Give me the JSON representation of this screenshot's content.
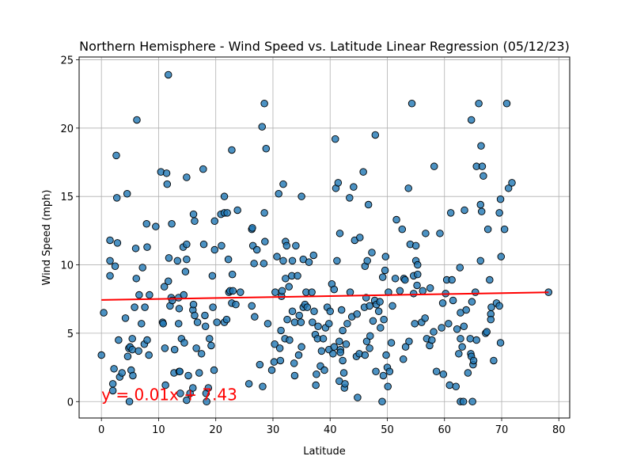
{
  "chart_data": {
    "type": "scatter",
    "title": "Northern Hemisphere - Wind Speed vs. Latitude Linear Regression (05/12/23)",
    "xlabel": "Latitude",
    "ylabel": "Wind Speed (mph)",
    "xlim": [
      -3.9,
      81.9
    ],
    "ylim": [
      -1.2,
      25.2
    ],
    "xticks": [
      0,
      10,
      20,
      30,
      40,
      50,
      60,
      70,
      80
    ],
    "yticks": [
      0,
      5,
      10,
      15,
      20,
      25
    ],
    "grid": true,
    "marker_color": "#1f77b4",
    "line_color": "#ff0000",
    "regression": {
      "slope": 0.0072,
      "intercept": 7.43,
      "x_range": [
        0,
        78.2
      ],
      "equation": "y = 0.01x + 7.43",
      "equation_x": 0,
      "equation_y": 0.1
    },
    "points": [
      [
        0,
        3.4
      ],
      [
        0.4,
        6.5
      ],
      [
        1.5,
        11.8
      ],
      [
        1.5,
        10.3
      ],
      [
        1.5,
        9.2
      ],
      [
        2,
        1.3
      ],
      [
        2,
        0.8
      ],
      [
        2.2,
        2.4
      ],
      [
        2.4,
        9.9
      ],
      [
        2.6,
        18
      ],
      [
        2.7,
        14.9
      ],
      [
        2.8,
        11.6
      ],
      [
        3,
        4.5
      ],
      [
        3.2,
        1.8
      ],
      [
        3.6,
        2.1
      ],
      [
        4.2,
        6.1
      ],
      [
        4.5,
        15.2
      ],
      [
        4.6,
        3.3
      ],
      [
        4.8,
        3.9
      ],
      [
        4.9,
        0
      ],
      [
        5,
        4
      ],
      [
        5.2,
        2.3
      ],
      [
        5.4,
        3.8
      ],
      [
        5.4,
        4.6
      ],
      [
        5.5,
        1.9
      ],
      [
        5.8,
        6.9
      ],
      [
        6,
        11.2
      ],
      [
        6.1,
        9
      ],
      [
        6.2,
        20.6
      ],
      [
        6.5,
        3.7
      ],
      [
        6.6,
        7.8
      ],
      [
        7,
        5.7
      ],
      [
        7.2,
        9.8
      ],
      [
        7.5,
        4.2
      ],
      [
        7.6,
        6.9
      ],
      [
        7.9,
        13
      ],
      [
        8,
        11.3
      ],
      [
        8,
        4.5
      ],
      [
        8.3,
        3.4
      ],
      [
        8.4,
        7.8
      ],
      [
        9.5,
        12.8
      ],
      [
        10.4,
        16.8
      ],
      [
        10.7,
        5.8
      ],
      [
        10.8,
        5.7
      ],
      [
        11,
        8.4
      ],
      [
        11.1,
        3.9
      ],
      [
        11.2,
        1.2
      ],
      [
        11.4,
        16.7
      ],
      [
        11.5,
        15.9
      ],
      [
        11.7,
        23.9
      ],
      [
        11.7,
        8.8
      ],
      [
        11.8,
        10.5
      ],
      [
        12,
        7
      ],
      [
        12.2,
        7.6
      ],
      [
        12.3,
        13
      ],
      [
        12.4,
        7.4
      ],
      [
        12.7,
        2.1
      ],
      [
        12.8,
        3.8
      ],
      [
        13.3,
        10.3
      ],
      [
        13.5,
        7.6
      ],
      [
        13.5,
        5.7
      ],
      [
        13.6,
        6.8
      ],
      [
        13.6,
        2.2
      ],
      [
        13.7,
        2.2
      ],
      [
        13.8,
        0.6
      ],
      [
        14,
        4.6
      ],
      [
        14.3,
        11.3
      ],
      [
        14.4,
        7.8
      ],
      [
        14.5,
        4.3
      ],
      [
        14.7,
        9.5
      ],
      [
        14.9,
        11.5
      ],
      [
        14.9,
        10.4
      ],
      [
        14.9,
        0.1
      ],
      [
        14.9,
        16.4
      ],
      [
        15.2,
        1.9
      ],
      [
        15.5,
        0.6
      ],
      [
        16,
        6.7
      ],
      [
        16.1,
        7.1
      ],
      [
        16,
        1
      ],
      [
        16.1,
        13.7
      ],
      [
        16.3,
        13.2
      ],
      [
        16.3,
        6.3
      ],
      [
        16.6,
        3.9
      ],
      [
        16.8,
        5.8
      ],
      [
        17.1,
        2.1
      ],
      [
        17.5,
        3.5
      ],
      [
        17.8,
        17
      ],
      [
        17.9,
        11.5
      ],
      [
        18.1,
        6.3
      ],
      [
        18.2,
        5.5
      ],
      [
        18.3,
        0.6
      ],
      [
        18.4,
        0
      ],
      [
        18.7,
        1
      ],
      [
        18.9,
        4.6
      ],
      [
        19.2,
        4.1
      ],
      [
        19.4,
        9.2
      ],
      [
        19.5,
        6.9
      ],
      [
        19.8,
        13.2
      ],
      [
        19.7,
        2.3
      ],
      [
        19.8,
        11.1
      ],
      [
        20.2,
        5.8
      ],
      [
        20.9,
        13.7
      ],
      [
        21,
        11.4
      ],
      [
        21.5,
        15
      ],
      [
        21.5,
        5.8
      ],
      [
        21.5,
        13.8
      ],
      [
        21.9,
        6
      ],
      [
        22,
        13.8
      ],
      [
        22.2,
        10.4
      ],
      [
        22.3,
        8
      ],
      [
        22.5,
        8.1
      ],
      [
        22.8,
        7.2
      ],
      [
        22.8,
        18.4
      ],
      [
        22.9,
        9.3
      ],
      [
        23,
        8.1
      ],
      [
        23.5,
        7.1
      ],
      [
        23.8,
        14
      ],
      [
        24.3,
        8
      ],
      [
        25.8,
        1.3
      ],
      [
        26.3,
        12.6
      ],
      [
        26.3,
        7
      ],
      [
        26.4,
        12.7
      ],
      [
        26.5,
        11.4
      ],
      [
        26.7,
        10.1
      ],
      [
        26.8,
        6.2
      ],
      [
        27.2,
        11.1
      ],
      [
        27.7,
        2.7
      ],
      [
        28.1,
        20.1
      ],
      [
        28.2,
        1.1
      ],
      [
        28.4,
        10.1
      ],
      [
        28.5,
        21.8
      ],
      [
        28.5,
        13.8
      ],
      [
        28.6,
        11.7
      ],
      [
        28.8,
        18.5
      ],
      [
        29.1,
        5.7
      ],
      [
        29.8,
        2.3
      ],
      [
        30.2,
        2.9
      ],
      [
        30.3,
        4.2
      ],
      [
        30.4,
        8
      ],
      [
        30.7,
        10.6
      ],
      [
        31,
        15.2
      ],
      [
        31.2,
        3.9
      ],
      [
        31.3,
        3
      ],
      [
        31.4,
        5.2
      ],
      [
        31.5,
        7.7
      ],
      [
        31.6,
        8.1
      ],
      [
        31.8,
        10.3
      ],
      [
        31.8,
        15.9
      ],
      [
        32.1,
        4.6
      ],
      [
        32.2,
        11.7
      ],
      [
        32.2,
        9
      ],
      [
        32.4,
        11.4
      ],
      [
        32.5,
        6
      ],
      [
        32.8,
        8.4
      ],
      [
        32.9,
        4.5
      ],
      [
        33.3,
        9.2
      ],
      [
        33.4,
        6.6
      ],
      [
        33.4,
        10.3
      ],
      [
        33.7,
        2.8
      ],
      [
        33.8,
        1.9
      ],
      [
        33.8,
        5.8
      ],
      [
        34,
        11.4
      ],
      [
        34.3,
        9.2
      ],
      [
        34.5,
        3.4
      ],
      [
        34.6,
        6.3
      ],
      [
        34.9,
        5.8
      ],
      [
        35,
        15
      ],
      [
        35,
        4
      ],
      [
        35.3,
        10.4
      ],
      [
        35.3,
        6.9
      ],
      [
        35.6,
        7.1
      ],
      [
        35.8,
        8
      ],
      [
        36,
        6.9
      ],
      [
        36.3,
        10.2
      ],
      [
        36.8,
        8
      ],
      [
        36.9,
        5.8
      ],
      [
        37.1,
        10.7
      ],
      [
        37.2,
        6.6
      ],
      [
        37.4,
        4.9
      ],
      [
        37.5,
        1.2
      ],
      [
        37.6,
        2
      ],
      [
        37.8,
        4.6
      ],
      [
        37.9,
        5.5
      ],
      [
        38.3,
        2.6
      ],
      [
        38.5,
        3.7
      ],
      [
        38.8,
        4.6
      ],
      [
        39,
        2.3
      ],
      [
        39.2,
        5.4
      ],
      [
        39.5,
        6.9
      ],
      [
        39.8,
        5.7
      ],
      [
        39.8,
        3.8
      ],
      [
        40,
        6.6
      ],
      [
        40.3,
        8.6
      ],
      [
        40.5,
        3.5
      ],
      [
        40.7,
        4
      ],
      [
        40.7,
        8.2
      ],
      [
        40.9,
        19.2
      ],
      [
        41,
        15.6
      ],
      [
        41.2,
        10.3
      ],
      [
        41.4,
        16
      ],
      [
        41.6,
        4.4
      ],
      [
        41.6,
        1.5
      ],
      [
        41.7,
        12.3
      ],
      [
        41.8,
        3.8
      ],
      [
        41.8,
        3.6
      ],
      [
        42,
        6.7
      ],
      [
        42.2,
        5.2
      ],
      [
        42.2,
        3
      ],
      [
        42.4,
        2.1
      ],
      [
        42.5,
        1
      ],
      [
        42.6,
        1.3
      ],
      [
        42.8,
        4.2
      ],
      [
        43,
        5.7
      ],
      [
        43.4,
        14.9
      ],
      [
        43.5,
        8
      ],
      [
        43.8,
        6.2
      ],
      [
        44.1,
        15.7
      ],
      [
        44.3,
        11.8
      ],
      [
        44.6,
        3.3
      ],
      [
        44.7,
        6.4
      ],
      [
        44.8,
        0.3
      ],
      [
        45.1,
        3.5
      ],
      [
        45.2,
        12
      ],
      [
        45.8,
        16.8
      ],
      [
        46,
        6.9
      ],
      [
        46.1,
        3.4
      ],
      [
        46.1,
        9.9
      ],
      [
        46.3,
        7.6
      ],
      [
        46.4,
        4.4
      ],
      [
        46.5,
        10.3
      ],
      [
        46.7,
        14.4
      ],
      [
        46.9,
        7
      ],
      [
        46.9,
        3.9
      ],
      [
        47,
        4.8
      ],
      [
        47.3,
        10.9
      ],
      [
        47.5,
        5.9
      ],
      [
        47.8,
        7.4
      ],
      [
        47.9,
        19.5
      ],
      [
        48,
        2.2
      ],
      [
        48.1,
        7.1
      ],
      [
        48.5,
        6.6
      ],
      [
        48.7,
        7.3
      ],
      [
        48.8,
        5.4
      ],
      [
        49.1,
        0
      ],
      [
        49.2,
        9.1
      ],
      [
        49.3,
        1.9
      ],
      [
        49.4,
        6
      ],
      [
        49.6,
        9.6
      ],
      [
        49.7,
        10.6
      ],
      [
        49.8,
        3.4
      ],
      [
        50,
        2.5
      ],
      [
        50.1,
        1.1
      ],
      [
        50.2,
        8
      ],
      [
        50.4,
        2.2
      ],
      [
        50.7,
        4.3
      ],
      [
        50.9,
        7
      ],
      [
        51.4,
        9
      ],
      [
        51.6,
        13.3
      ],
      [
        52.2,
        8.1
      ],
      [
        52.6,
        12.6
      ],
      [
        52.8,
        3.1
      ],
      [
        52.9,
        9
      ],
      [
        53.1,
        8.9
      ],
      [
        53.2,
        4
      ],
      [
        53.7,
        15.6
      ],
      [
        53.8,
        4.4
      ],
      [
        54,
        11.5
      ],
      [
        54.3,
        21.8
      ],
      [
        54.6,
        9.2
      ],
      [
        54.6,
        7.9
      ],
      [
        54.8,
        5.7
      ],
      [
        55,
        10.3
      ],
      [
        55,
        11.4
      ],
      [
        55.2,
        8.5
      ],
      [
        55.3,
        9.3
      ],
      [
        55.3,
        10
      ],
      [
        56,
        5.8
      ],
      [
        56.2,
        8.1
      ],
      [
        56.6,
        6.1
      ],
      [
        56.7,
        12.3
      ],
      [
        56.9,
        4.6
      ],
      [
        57.4,
        4.1
      ],
      [
        57.5,
        8.3
      ],
      [
        57.8,
        4.5
      ],
      [
        58.1,
        5.1
      ],
      [
        58.2,
        17.2
      ],
      [
        58.6,
        2.2
      ],
      [
        59.2,
        12.3
      ],
      [
        59.5,
        5.4
      ],
      [
        59.7,
        7.2
      ],
      [
        59.8,
        2
      ],
      [
        60.2,
        7.9
      ],
      [
        60.4,
        8.9
      ],
      [
        60.7,
        5.7
      ],
      [
        60.9,
        1.2
      ],
      [
        61.1,
        13.8
      ],
      [
        61.3,
        8.9
      ],
      [
        61.5,
        7.4
      ],
      [
        62,
        1.1
      ],
      [
        62.2,
        5.3
      ],
      [
        62.5,
        3.5
      ],
      [
        62.7,
        9.8
      ],
      [
        62.8,
        4.6
      ],
      [
        62.8,
        6.5
      ],
      [
        62.8,
        0
      ],
      [
        63.1,
        4
      ],
      [
        63.3,
        0
      ],
      [
        63.4,
        5.5
      ],
      [
        63.5,
        14
      ],
      [
        63.8,
        6.7
      ],
      [
        64.1,
        2.1
      ],
      [
        64.5,
        4.6
      ],
      [
        64.6,
        3.5
      ],
      [
        64.7,
        20.6
      ],
      [
        64.7,
        3.3
      ],
      [
        64.8,
        7.3
      ],
      [
        64.9,
        0
      ],
      [
        65,
        2.7
      ],
      [
        65.1,
        3
      ],
      [
        65.4,
        8
      ],
      [
        65.6,
        17.2
      ],
      [
        65.6,
        4.5
      ],
      [
        66,
        21.8
      ],
      [
        66.3,
        10.3
      ],
      [
        66.3,
        14.4
      ],
      [
        66.4,
        18.7
      ],
      [
        66.5,
        13.9
      ],
      [
        66.6,
        17.2
      ],
      [
        66.8,
        16.5
      ],
      [
        67.2,
        5
      ],
      [
        67.4,
        5.1
      ],
      [
        67.6,
        12.6
      ],
      [
        67.9,
        8.9
      ],
      [
        68.1,
        6.4
      ],
      [
        68.1,
        6
      ],
      [
        68.2,
        6.9
      ],
      [
        68.6,
        3
      ],
      [
        69.1,
        7.2
      ],
      [
        69.6,
        13.8
      ],
      [
        69.6,
        7
      ],
      [
        69.8,
        14.8
      ],
      [
        69.8,
        4.3
      ],
      [
        69.9,
        10.6
      ],
      [
        70.5,
        12.6
      ],
      [
        70.9,
        21.8
      ],
      [
        71.2,
        15.6
      ],
      [
        71.8,
        16
      ],
      [
        78.2,
        8
      ]
    ]
  }
}
